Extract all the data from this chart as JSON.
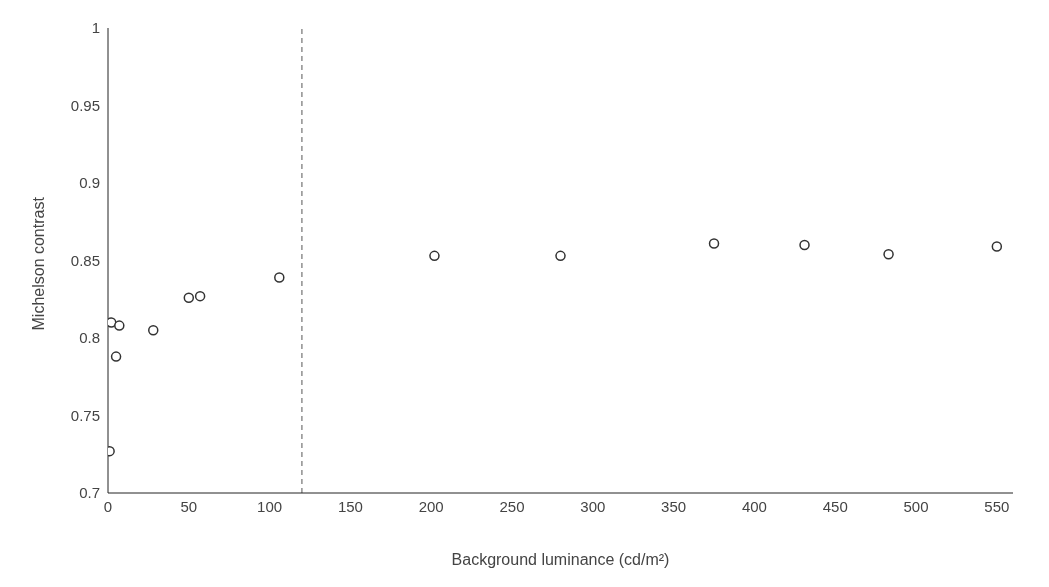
{
  "chart_data": {
    "type": "scatter",
    "xlabel": "Background luminance (cd/m²)",
    "ylabel": "Michelson contrast",
    "x": [
      1,
      2,
      5,
      7,
      28,
      50,
      57,
      106,
      202,
      280,
      375,
      431,
      483,
      550
    ],
    "values": [
      0.727,
      0.81,
      0.788,
      0.808,
      0.805,
      0.826,
      0.827,
      0.839,
      0.853,
      0.853,
      0.861,
      0.86,
      0.854,
      0.859
    ],
    "color": "#333333",
    "marker": "circle",
    "xlim": [
      0,
      560
    ],
    "xticks": [
      0,
      50,
      100,
      150,
      200,
      250,
      300,
      350,
      400,
      450,
      500,
      550
    ],
    "ylim": [
      0.7,
      1
    ],
    "yticks": [
      0.7,
      0.75,
      0.8,
      0.85,
      0.9,
      0.95,
      1
    ],
    "ref_lines": [
      {
        "axis": "x",
        "value": 120,
        "color": "#555555",
        "line_style": "dashed"
      }
    ],
    "grid": false,
    "legend": false
  }
}
